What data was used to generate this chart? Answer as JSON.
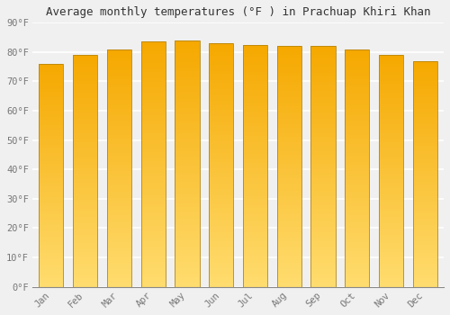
{
  "title": "Average monthly temperatures (°F ) in Prachuap Khiri Khan",
  "months": [
    "Jan",
    "Feb",
    "Mar",
    "Apr",
    "May",
    "Jun",
    "Jul",
    "Aug",
    "Sep",
    "Oct",
    "Nov",
    "Dec"
  ],
  "values": [
    76,
    79,
    81,
    83.5,
    84,
    83,
    82.5,
    82,
    82,
    81,
    79,
    77
  ],
  "bar_color_top": "#F5A800",
  "bar_color_bottom": "#FFDC6E",
  "ylim": [
    0,
    90
  ],
  "yticks": [
    0,
    10,
    20,
    30,
    40,
    50,
    60,
    70,
    80,
    90
  ],
  "ytick_labels": [
    "0°F",
    "10°F",
    "20°F",
    "30°F",
    "40°F",
    "50°F",
    "60°F",
    "70°F",
    "80°F",
    "90°F"
  ],
  "background_color": "#f0f0f0",
  "grid_color": "#ffffff",
  "title_fontsize": 9,
  "tick_fontsize": 7.5,
  "bar_edge_color": "#b8860b",
  "font_family": "monospace"
}
